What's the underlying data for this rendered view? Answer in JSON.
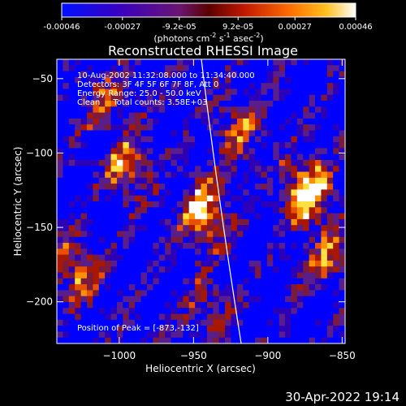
{
  "chart_data": {
    "type": "heatmap",
    "title": "Reconstructed RHESSI Image",
    "xlabel": "Heliocentric X (arcsec)",
    "ylabel": "Heliocentric Y (arcsec)",
    "xlim": [
      -1042,
      -848
    ],
    "ylim": [
      -228,
      -37
    ],
    "xticks": [
      -1000,
      -950,
      -900,
      -850
    ],
    "yticks": [
      -50,
      -100,
      -150,
      -200
    ],
    "colorbar": {
      "label": "(photons cm",
      "label_exp1": "-2",
      "label_mid": " s",
      "label_exp2": "-1",
      "label_mid2": " asec",
      "label_exp3": "-2",
      "label_end": ")",
      "ticks": [
        "-0.00046",
        "-0.00027",
        "-9.2e-05",
        "9.2e-05",
        "0.00027",
        "0.00046"
      ],
      "range": [
        -0.00046,
        0.00046
      ]
    },
    "annotations": [
      "10-Aug-2002 11:32:08.000 to 11:34:40.000",
      "Detectors: 3F 4F 5F 6F 7F 8F, Att 0",
      "Energy Range: 25.0 - 50.0 keV",
      "Clean     Total counts: 3.58E+03"
    ],
    "peak_label": "Position of Peak = [-873,-132]",
    "peak": [
      -873,
      -132
    ],
    "hot_regions": [
      {
        "x": -943,
        "y": -140,
        "value": 0.0004
      },
      {
        "x": -873,
        "y": -125,
        "value": 0.00046
      },
      {
        "x": -995,
        "y": -110,
        "value": 0.0003
      },
      {
        "x": -920,
        "y": -85,
        "value": 0.00025
      },
      {
        "x": -1030,
        "y": -180,
        "value": 0.0003
      },
      {
        "x": -860,
        "y": -170,
        "value": 0.00025
      },
      {
        "x": -940,
        "y": -205,
        "value": 0.0002
      },
      {
        "x": -1010,
        "y": -65,
        "value": 0.0002
      }
    ],
    "colors": [
      "#0000ff",
      "#2d00b8",
      "#5a1e8c",
      "#7a1a3c",
      "#a81800",
      "#e85000",
      "#ff9000",
      "#ffe040",
      "#ffffff"
    ]
  },
  "footer": {
    "date": "30-Apr-2022 19:14"
  }
}
